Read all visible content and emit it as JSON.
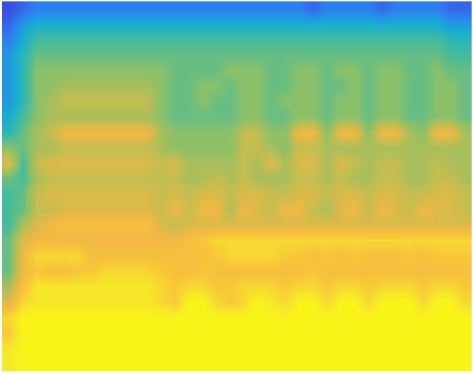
{
  "chart_data": {
    "type": "heatmap",
    "tick_labels": false,
    "grid": false,
    "xlim": [
      0,
      34
    ],
    "ylim": [
      0,
      24
    ],
    "zlim": [
      0,
      10
    ],
    "cells": [
      [
        9.5,
        10,
        10,
        10,
        10,
        10,
        10,
        10,
        10,
        10,
        10,
        10,
        10,
        10,
        10,
        10,
        10,
        10,
        10,
        10,
        10,
        10,
        10,
        10,
        10,
        10,
        10,
        10,
        10,
        10,
        10,
        10,
        10,
        10
      ],
      [
        9.5,
        10,
        10,
        10,
        10,
        10,
        10,
        10,
        10,
        10,
        10,
        10,
        10,
        10,
        10,
        10,
        10,
        10,
        10,
        10,
        10,
        10,
        10,
        10,
        10,
        10,
        10,
        10,
        10,
        10,
        10,
        10,
        10,
        10
      ],
      [
        8.5,
        10,
        10,
        10,
        10,
        10,
        10,
        10,
        10,
        10,
        10,
        10,
        10,
        10,
        10,
        10,
        10,
        10,
        10,
        10,
        10,
        10,
        10,
        10,
        10,
        10,
        10,
        10,
        10,
        10,
        10,
        10,
        10,
        10
      ],
      [
        9,
        10,
        10,
        10,
        10,
        10,
        10,
        10,
        10,
        10,
        10,
        10,
        10,
        10,
        10,
        10,
        10,
        10,
        10,
        10,
        10,
        10,
        10,
        10,
        10,
        10,
        10,
        10,
        10,
        10,
        10,
        10,
        10,
        10
      ],
      [
        7,
        9,
        9.5,
        9.5,
        9.5,
        9.5,
        9.5,
        9.5,
        9.5,
        9.5,
        9.5,
        9,
        8.5,
        10,
        10,
        9,
        8.5,
        9,
        10,
        9.5,
        9,
        10,
        10,
        9,
        10,
        10,
        9,
        10,
        10,
        10,
        9,
        10,
        10,
        9
      ],
      [
        6,
        8,
        9.5,
        9.5,
        9.5,
        9.5,
        9.5,
        9.5,
        9.5,
        9.5,
        9.5,
        9,
        8.5,
        9,
        9,
        8.5,
        8.5,
        9,
        9,
        9,
        8.5,
        9,
        9,
        8.5,
        9,
        9,
        8.5,
        9,
        9,
        9,
        8.5,
        9,
        9,
        8.5
      ],
      [
        5,
        7.5,
        8.5,
        8,
        8,
        8.5,
        8.5,
        9,
        9,
        9,
        9,
        8.5,
        8,
        8,
        8.5,
        8,
        8,
        8,
        8,
        8,
        8,
        8,
        8.5,
        8,
        8,
        8,
        8,
        8,
        8,
        8,
        8,
        8,
        8,
        8
      ],
      [
        5,
        7.5,
        9,
        9,
        9,
        9,
        8,
        8,
        8,
        8,
        8,
        8,
        8,
        8,
        8,
        8.5,
        9,
        9,
        9,
        9,
        8.5,
        8.5,
        8,
        8.5,
        8,
        8.5,
        8,
        8,
        8,
        8.5,
        8,
        8.5,
        8.5,
        8.5
      ],
      [
        5,
        7,
        7.5,
        7.5,
        7.5,
        7.5,
        7.5,
        7.5,
        7.5,
        7.5,
        7.5,
        7.5,
        7.5,
        8,
        8.5,
        9,
        9,
        9,
        9,
        9,
        9,
        9,
        9,
        9,
        9,
        9,
        9,
        9,
        9,
        9,
        9,
        9,
        9,
        9
      ],
      [
        4.5,
        6,
        7,
        7.5,
        8,
        8,
        8,
        8,
        8,
        8,
        8,
        7,
        6.5,
        7,
        7,
        7,
        7,
        7,
        7,
        7,
        7,
        7,
        7,
        7,
        7,
        7,
        7,
        7,
        7,
        7,
        7,
        7,
        7,
        7
      ],
      [
        4.5,
        5,
        6.5,
        6.5,
        7,
        7,
        7,
        7,
        7,
        7,
        7,
        6.5,
        7.5,
        6.5,
        7.5,
        7.5,
        6,
        7.5,
        7,
        6.5,
        7.5,
        7.5,
        6.5,
        6,
        7,
        7.5,
        6.5,
        7.5,
        7,
        6.5,
        7.5,
        7,
        7,
        6.5
      ],
      [
        4.5,
        5,
        6.5,
        7,
        7,
        7,
        7,
        7,
        7,
        7,
        7,
        6.5,
        7,
        6.5,
        7,
        7,
        6.5,
        7,
        7,
        6.5,
        6.5,
        7,
        7,
        6.5,
        7,
        7,
        6.5,
        7,
        7,
        6.5,
        6.5,
        7,
        7,
        6.5
      ],
      [
        5,
        4.5,
        6,
        6.5,
        6.5,
        6.5,
        6.5,
        6.5,
        6.5,
        6.5,
        6.5,
        6.5,
        6.5,
        6,
        6,
        6.5,
        6,
        6.5,
        6,
        6,
        6,
        6.5,
        6.5,
        6,
        6.5,
        6,
        6,
        6.5,
        6.5,
        6,
        6,
        6.5,
        6.5,
        6
      ],
      [
        7,
        4.5,
        6.5,
        7,
        7,
        7,
        7,
        7,
        7,
        7,
        7,
        6.5,
        7,
        6,
        6,
        6,
        6,
        6.5,
        6,
        7,
        6,
        7,
        7,
        6,
        7,
        6.5,
        6,
        6.5,
        6.5,
        6,
        6,
        6.5,
        6,
        6
      ],
      [
        5.5,
        5,
        6,
        6,
        6.5,
        6.5,
        6.5,
        6.5,
        6.5,
        6.5,
        6.5,
        6,
        5.5,
        5.5,
        5.5,
        5.5,
        5.5,
        6.5,
        6.5,
        6,
        5.5,
        6.5,
        6.5,
        6,
        6,
        6,
        6,
        6,
        6,
        6,
        6,
        6,
        6,
        6
      ],
      [
        4,
        5,
        6,
        6.5,
        7.5,
        7.5,
        7.5,
        7.5,
        7.5,
        7.5,
        7.5,
        6,
        5.5,
        5.5,
        5.5,
        5.5,
        5.5,
        6.5,
        6.5,
        5.5,
        5.5,
        7.5,
        7.5,
        5.5,
        7.5,
        7.5,
        5.5,
        7.5,
        7.5,
        6,
        5.5,
        7.5,
        7.5,
        6
      ],
      [
        3.5,
        4.5,
        5.5,
        6,
        6,
        6,
        6,
        6,
        6,
        6,
        6,
        5.5,
        5,
        5,
        5,
        5,
        5,
        5.5,
        5.5,
        5,
        5,
        5.5,
        5.5,
        5,
        5.5,
        5.5,
        5,
        5.5,
        5.5,
        5,
        5,
        5.5,
        5.5,
        5
      ],
      [
        3,
        4,
        5.5,
        6,
        6.5,
        6.5,
        6.5,
        6.5,
        6.5,
        6.5,
        6.5,
        5.5,
        5,
        5,
        5.5,
        5,
        5,
        5.5,
        5.5,
        5,
        5.5,
        5.5,
        5.5,
        5,
        5.5,
        5.5,
        5,
        5.5,
        5.5,
        5,
        5,
        5.5,
        5.5,
        5
      ],
      [
        3,
        4,
        5.5,
        5.5,
        6,
        6,
        6,
        6,
        6,
        6,
        6,
        5.5,
        5,
        5,
        5.5,
        5.5,
        5,
        5.5,
        5.5,
        5,
        5,
        5.5,
        5.5,
        5,
        5,
        5.5,
        5,
        5.5,
        5.5,
        5,
        5,
        5.5,
        5.5,
        5
      ],
      [
        3,
        4,
        5.5,
        5.5,
        5.5,
        5.5,
        5.5,
        5.5,
        5.5,
        5.5,
        5.5,
        5.5,
        5,
        5,
        5,
        5,
        5.5,
        5.5,
        5.5,
        5,
        5,
        5.5,
        5.5,
        5,
        5.5,
        5.5,
        5,
        5.5,
        5.5,
        5,
        5,
        5.5,
        5,
        5
      ],
      [
        3,
        4,
        5,
        5,
        5,
        5,
        5,
        5,
        5,
        5,
        5,
        5,
        5,
        5,
        5,
        5,
        5,
        5,
        5,
        5,
        5,
        5,
        5,
        5,
        5,
        5,
        5,
        5,
        5,
        5,
        5,
        5,
        4.5,
        4.5
      ],
      [
        2.5,
        3.5,
        4.5,
        4.5,
        4.5,
        4.5,
        4.5,
        4.5,
        4.5,
        4.5,
        4.5,
        4.5,
        4.5,
        4.5,
        4.5,
        4.5,
        4.5,
        4.5,
        4.5,
        4.5,
        4.5,
        4.5,
        4.5,
        4.5,
        4.5,
        4.5,
        4.5,
        4.5,
        4.5,
        4.5,
        4.5,
        4.5,
        4,
        4
      ],
      [
        2,
        3,
        3.5,
        3.5,
        3.5,
        3.5,
        3.5,
        3.5,
        3.5,
        3.5,
        3.5,
        3.5,
        3.5,
        3.5,
        3.5,
        3.5,
        3.5,
        3.5,
        3.5,
        3.5,
        3.5,
        3.5,
        3.5,
        3.5,
        3.5,
        3.5,
        3.5,
        3.5,
        3.5,
        3.5,
        3.5,
        3.5,
        3,
        3
      ],
      [
        1.5,
        2,
        2.5,
        2.5,
        2.5,
        2.5,
        2.5,
        2.5,
        2.5,
        2.5,
        2.5,
        2.5,
        2.5,
        2.5,
        2.5,
        2.5,
        2.5,
        2.5,
        2.5,
        2.5,
        2.5,
        2.5,
        2,
        2.5,
        2.5,
        2.5,
        2.5,
        2,
        2.5,
        2.5,
        2.5,
        2.5,
        2,
        2
      ]
    ]
  }
}
